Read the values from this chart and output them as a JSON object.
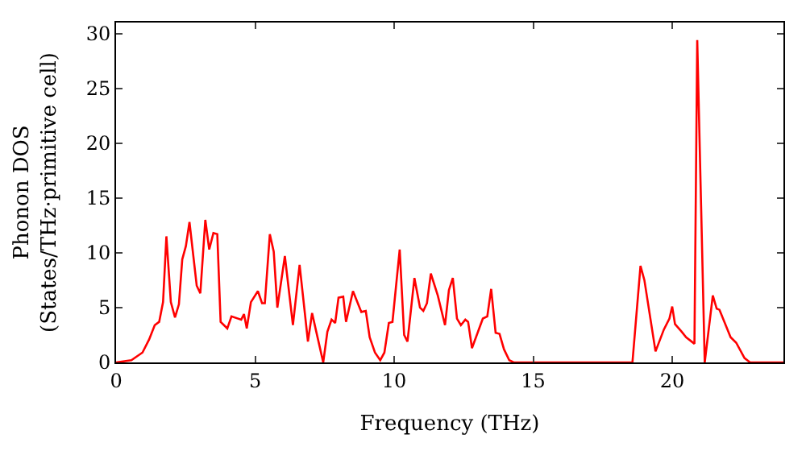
{
  "chart_data": {
    "type": "line",
    "xlabel": "Frequency (THz)",
    "ylabel": "Phonon DOS\n(States/THz·primitive cell)",
    "x": [
      0.0,
      0.55,
      0.95,
      1.19,
      1.39,
      1.55,
      1.69,
      1.81,
      1.97,
      2.12,
      2.26,
      2.38,
      2.51,
      2.64,
      2.9,
      3.03,
      3.21,
      3.35,
      3.5,
      3.64,
      3.76,
      4.0,
      4.15,
      4.5,
      4.6,
      4.7,
      4.85,
      5.1,
      5.25,
      5.35,
      5.53,
      5.67,
      5.8,
      6.07,
      6.36,
      6.6,
      6.9,
      7.05,
      7.2,
      7.45,
      7.6,
      7.75,
      7.88,
      8.0,
      8.17,
      8.27,
      8.52,
      8.82,
      8.98,
      9.12,
      9.31,
      9.5,
      9.65,
      9.81,
      9.94,
      10.2,
      10.36,
      10.48,
      10.73,
      10.93,
      11.05,
      11.18,
      11.32,
      11.57,
      11.83,
      11.97,
      12.11,
      12.26,
      12.4,
      12.56,
      12.66,
      12.8,
      13.19,
      13.35,
      13.49,
      13.65,
      13.79,
      13.95,
      14.14,
      14.3,
      18.57,
      18.86,
      19.0,
      19.4,
      19.7,
      19.9,
      20.0,
      20.1,
      20.34,
      20.5,
      20.8,
      20.9,
      21.17,
      21.46,
      21.6,
      21.7,
      22.1,
      22.3,
      22.6,
      22.8,
      24.0
    ],
    "series": [
      {
        "color": "#ff0000",
        "values": [
          0.0,
          0.2,
          0.9,
          2.1,
          3.4,
          3.7,
          5.5,
          11.5,
          5.5,
          4.1,
          5.3,
          9.4,
          10.6,
          12.8,
          7.0,
          6.3,
          13.0,
          10.3,
          11.8,
          11.7,
          3.7,
          3.1,
          4.2,
          3.9,
          4.4,
          3.1,
          5.5,
          6.5,
          5.4,
          5.4,
          11.7,
          10.1,
          5.0,
          9.7,
          3.4,
          8.9,
          1.9,
          4.5,
          2.8,
          0.0,
          2.8,
          3.9,
          3.6,
          5.9,
          6.0,
          3.7,
          6.5,
          4.6,
          4.7,
          2.3,
          0.9,
          0.2,
          0.9,
          3.6,
          3.7,
          10.3,
          2.5,
          1.9,
          7.7,
          5.0,
          4.7,
          5.4,
          8.1,
          6.1,
          3.4,
          6.6,
          7.7,
          4.0,
          3.4,
          3.9,
          3.7,
          1.3,
          4.0,
          4.2,
          6.7,
          2.7,
          2.6,
          1.2,
          0.2,
          0.0,
          0.0,
          8.8,
          7.5,
          1.0,
          3.0,
          4.0,
          5.1,
          3.5,
          2.8,
          2.3,
          1.7,
          29.4,
          0.0,
          6.1,
          4.9,
          4.8,
          2.3,
          1.8,
          0.4,
          0.0,
          0.0
        ]
      }
    ],
    "xlim": [
      0,
      24
    ],
    "ylim": [
      0,
      31
    ],
    "xticks": [
      0,
      5,
      10,
      15,
      20
    ],
    "yticks": [
      0,
      5,
      10,
      15,
      20,
      25,
      30
    ],
    "marker": "none",
    "line_style": "solid"
  }
}
